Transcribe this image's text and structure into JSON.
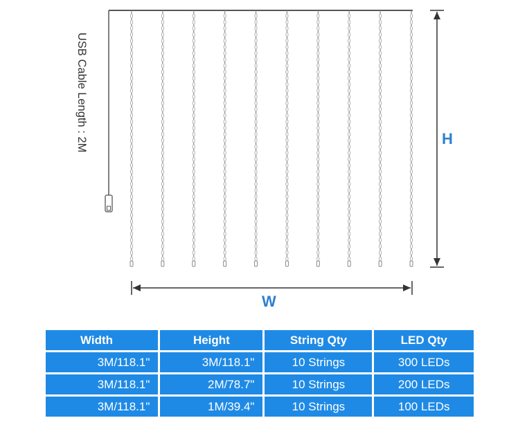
{
  "diagram": {
    "height_label": "H",
    "width_label": "W",
    "cable_label": "USB Cable Length : 2M",
    "string_count": 10,
    "line_color": "#555555",
    "dim_color": "#333333",
    "accent_color": "#2f7fd0"
  },
  "table": {
    "header_color": "#1f8ae5",
    "headers": [
      "Width",
      "Height",
      "String Qty",
      "LED Qty"
    ],
    "rows": [
      [
        "3M/118.1\"",
        "3M/118.1\"",
        "10 Strings",
        "300 LEDs"
      ],
      [
        "3M/118.1\"",
        "2M/78.7\"",
        "10 Strings",
        "200 LEDs"
      ],
      [
        "3M/118.1\"",
        "1M/39.4\"",
        "10 Strings",
        "100 LEDs"
      ]
    ]
  }
}
